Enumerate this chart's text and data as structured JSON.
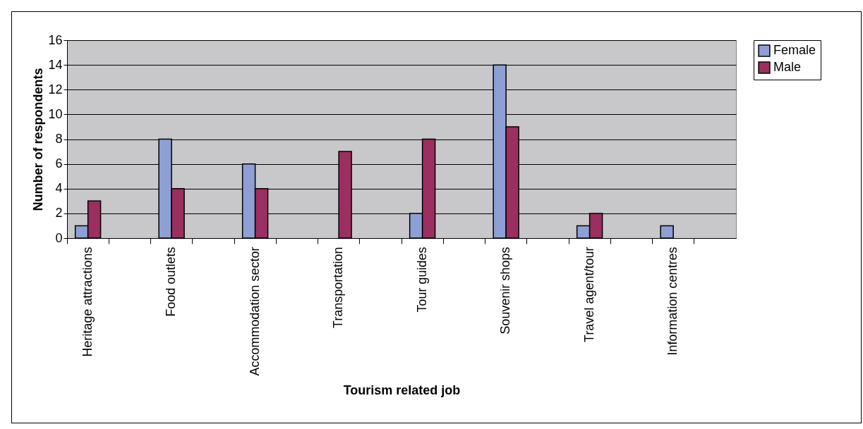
{
  "chart_data": {
    "type": "bar",
    "xlabel": "Tourism related job",
    "ylabel": "Number of respondents",
    "categories": [
      "Heritage attractions",
      null,
      "Food outlets",
      null,
      "Accommodation sector",
      null,
      "Transportation",
      null,
      "Tour guides",
      null,
      "Souvenir shops",
      null,
      "Travel agent/tour",
      null,
      "Information centres",
      null
    ],
    "series": [
      {
        "name": "Female",
        "color": "#8e9fd5",
        "values": [
          1,
          null,
          8,
          null,
          6,
          null,
          null,
          null,
          2,
          null,
          14,
          null,
          1,
          null,
          1,
          null
        ]
      },
      {
        "name": "Male",
        "color": "#9b2f5f",
        "values": [
          3,
          null,
          4,
          null,
          4,
          null,
          7,
          null,
          8,
          null,
          9,
          null,
          2,
          null,
          null,
          null
        ]
      }
    ],
    "ylim": [
      0,
      16
    ],
    "yticks": [
      0,
      2,
      4,
      6,
      8,
      10,
      12,
      14,
      16
    ],
    "grid": "y",
    "legend": "right"
  }
}
